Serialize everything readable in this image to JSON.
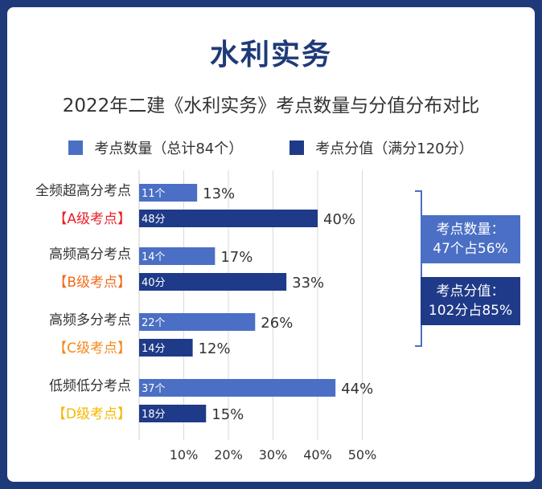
{
  "title": "水利实务",
  "subtitle": "2022年二建《水利实务》考点数量与分值分布对比",
  "legend": {
    "count_label": "考点数量（总计84个）",
    "score_label": "考点分值（满分120分）"
  },
  "colors": {
    "count": "#4a6fc4",
    "score": "#1f3a88",
    "background": "#1f3a78",
    "grade_a": "#e8202a",
    "grade_b": "#f26a1b",
    "grade_c": "#f28a1b",
    "grade_d": "#f5b800",
    "bracket": "#4a6fc4"
  },
  "summary": {
    "count": {
      "line1": "考点数量：",
      "line2": "47个占56%"
    },
    "score": {
      "line1": "考点分值：",
      "line2": "102分占85%"
    }
  },
  "chart_data": {
    "type": "bar",
    "orientation": "horizontal",
    "categories": [
      {
        "name": "全频超高分考点",
        "grade": "【A级考点】"
      },
      {
        "name": "高频高分考点",
        "grade": "【B级考点】"
      },
      {
        "name": "高频多分考点",
        "grade": "【C级考点】"
      },
      {
        "name": "低频低分考点",
        "grade": "【D级考点】"
      }
    ],
    "series": [
      {
        "name": "考点数量（总计84个）",
        "inner_labels": [
          "11个",
          "14个",
          "22个",
          "37个"
        ],
        "values": [
          13,
          17,
          26,
          44
        ],
        "value_labels": [
          "13%",
          "17%",
          "26%",
          "44%"
        ]
      },
      {
        "name": "考点分值（满分120分）",
        "inner_labels": [
          "48分",
          "40分",
          "14分",
          "18分"
        ],
        "values": [
          40,
          33,
          12,
          15
        ],
        "value_labels": [
          "40%",
          "33%",
          "12%",
          "15%"
        ]
      }
    ],
    "x_ticks": [
      "10%",
      "20%",
      "30%",
      "40%",
      "50%"
    ],
    "x_tick_values": [
      10,
      20,
      30,
      40,
      50
    ],
    "xlim": [
      0,
      50
    ],
    "grid": true
  }
}
